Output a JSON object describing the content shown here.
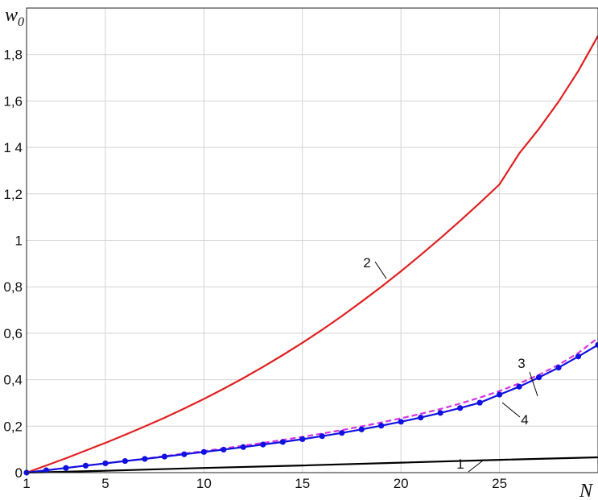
{
  "chart_data": {
    "type": "line",
    "title": "",
    "xlabel": "N",
    "ylabel": {
      "main": "w",
      "sub": "0"
    },
    "xlim": [
      1,
      30
    ],
    "ylim": [
      0,
      2
    ],
    "grid": true,
    "x_ticks": [
      {
        "value": 1,
        "label": "1"
      },
      {
        "value": 5,
        "label": "5"
      },
      {
        "value": 10,
        "label": "10"
      },
      {
        "value": 15,
        "label": "15"
      },
      {
        "value": 20,
        "label": "20"
      },
      {
        "value": 25,
        "label": "25"
      }
    ],
    "y_ticks": [
      {
        "value": 0,
        "label": "0"
      },
      {
        "value": 0.2,
        "label": "0,2"
      },
      {
        "value": 0.4,
        "label": "0,4"
      },
      {
        "value": 0.6,
        "label": "0,6"
      },
      {
        "value": 0.8,
        "label": "0,8"
      },
      {
        "value": 1.0,
        "label": "1"
      },
      {
        "value": 1.2,
        "label": "1,2"
      },
      {
        "value": 1.4,
        "label": "1 4"
      },
      {
        "value": 1.6,
        "label": "1,6"
      },
      {
        "value": 1.8,
        "label": "1,8"
      }
    ],
    "series": [
      {
        "id": "1",
        "color": "#000000",
        "style": "solid",
        "markers": false,
        "x": [
          1,
          5,
          10,
          15,
          20,
          25,
          30
        ],
        "y": [
          0,
          0.008,
          0.02,
          0.031,
          0.043,
          0.055,
          0.066
        ]
      },
      {
        "id": "2",
        "color": "#e02020",
        "style": "solid",
        "markers": false,
        "x": [
          1,
          2,
          3,
          4,
          5,
          6,
          7,
          8,
          9,
          10,
          11,
          12,
          13,
          14,
          15,
          16,
          17,
          18,
          19,
          20,
          21,
          22,
          23,
          24,
          25,
          26,
          27,
          28,
          29,
          30
        ],
        "y": [
          0,
          0.031,
          0.062,
          0.095,
          0.128,
          0.163,
          0.199,
          0.236,
          0.276,
          0.317,
          0.361,
          0.407,
          0.455,
          0.506,
          0.559,
          0.615,
          0.674,
          0.736,
          0.8,
          0.867,
          0.937,
          1.009,
          1.084,
          1.161,
          1.241,
          1.374,
          1.48,
          1.597,
          1.729,
          1.88
        ]
      },
      {
        "id": "3",
        "color": "#d633e0",
        "style": "dashed",
        "markers": false,
        "x": [
          1,
          2,
          3,
          4,
          5,
          6,
          7,
          8,
          9,
          10,
          11,
          12,
          13,
          14,
          15,
          16,
          17,
          18,
          19,
          20,
          21,
          22,
          23,
          24,
          25,
          26,
          27,
          28,
          29,
          30
        ],
        "y": [
          0,
          0.01,
          0.02,
          0.03,
          0.04,
          0.05,
          0.06,
          0.071,
          0.082,
          0.093,
          0.104,
          0.116,
          0.128,
          0.141,
          0.154,
          0.168,
          0.183,
          0.199,
          0.216,
          0.234,
          0.253,
          0.274,
          0.297,
          0.323,
          0.351,
          0.384,
          0.421,
          0.464,
          0.515,
          0.58
        ]
      },
      {
        "id": "4",
        "color": "#1010e0",
        "style": "solid",
        "markers": true,
        "x": [
          1,
          2,
          3,
          4,
          5,
          6,
          7,
          8,
          9,
          10,
          11,
          12,
          13,
          14,
          15,
          16,
          17,
          18,
          19,
          20,
          21,
          22,
          23,
          24,
          25,
          26,
          27,
          28,
          29,
          30
        ],
        "y": [
          0,
          0.01,
          0.02,
          0.03,
          0.04,
          0.05,
          0.059,
          0.069,
          0.079,
          0.089,
          0.099,
          0.11,
          0.121,
          0.132,
          0.144,
          0.157,
          0.171,
          0.186,
          0.202,
          0.219,
          0.237,
          0.257,
          0.278,
          0.301,
          0.336,
          0.37,
          0.41,
          0.452,
          0.5,
          0.55
        ]
      }
    ],
    "annotations": [
      {
        "text": "1",
        "series": "1"
      },
      {
        "text": "2",
        "series": "2"
      },
      {
        "text": "3",
        "series": "3"
      },
      {
        "text": "4",
        "series": "4"
      }
    ]
  }
}
